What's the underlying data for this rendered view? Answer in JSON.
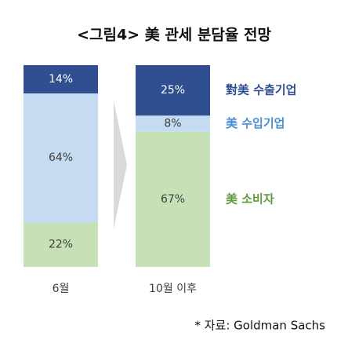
{
  "chart_data": {
    "type": "stacked_bar",
    "title": "<그림4> 美 관세 분담율 전망",
    "categories": [
      "6월",
      "10월 이후"
    ],
    "series": [
      {
        "name": "對美 수출기업",
        "color": "#2f4f91",
        "legend_color": "#2f4f91",
        "value_label_color": "#ffffff",
        "values": [
          14,
          25
        ],
        "value_labels": [
          "14%",
          "25%"
        ]
      },
      {
        "name": "美 수입기업",
        "color": "#c5dbf1",
        "legend_color": "#4a8fd3",
        "value_label_color": "#404040",
        "values": [
          64,
          8
        ],
        "value_labels": [
          "64%",
          "8%"
        ]
      },
      {
        "name": "美 소비자",
        "color": "#c7e1b6",
        "legend_color": "#5f9a3b",
        "value_label_color": "#404040",
        "values": [
          22,
          67
        ],
        "value_labels": [
          "22%",
          "67%"
        ]
      }
    ],
    "source": "* 자료: Goldman Sachs"
  }
}
